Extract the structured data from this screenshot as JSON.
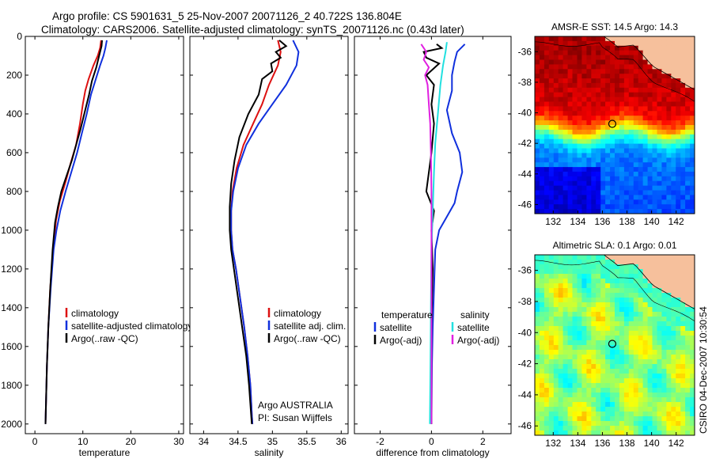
{
  "header": {
    "line1": "Argo profile: CS 5901631_5 25-Nov-2007 20071126_2 40.722S 136.804E",
    "line2": "Climatology: CARS2006. Satellite-adjusted climatology: synTS_20071126.nc (0.43d later)"
  },
  "footer": {
    "credit": "CSIRO 04-Dec-2007 10:30:54"
  },
  "colors": {
    "climatology": "#dd1010",
    "satellite": "#1030dd",
    "argo": "#000000",
    "salinity_satellite": "#22e0e0",
    "salinity_argo": "#e020e0",
    "land": "#f6c09c"
  },
  "chart_data": [
    {
      "id": "temperature",
      "type": "line",
      "xlabel": "temperature",
      "ylabel": "",
      "xlim": [
        -2,
        31
      ],
      "ylim": [
        2050,
        0
      ],
      "xticks": [
        0,
        10,
        20,
        30
      ],
      "yticks": [
        0,
        200,
        400,
        600,
        800,
        1000,
        1200,
        1400,
        1600,
        1800,
        2000
      ],
      "series": [
        {
          "name": "climatology",
          "color": "#dd1010",
          "points": [
            [
              13.8,
              20
            ],
            [
              13.6,
              60
            ],
            [
              13.1,
              100
            ],
            [
              12.2,
              150
            ],
            [
              11.2,
              220
            ],
            [
              10.5,
              280
            ],
            [
              10.0,
              350
            ],
            [
              9.4,
              450
            ],
            [
              8.6,
              560
            ],
            [
              7.5,
              650
            ],
            [
              6.4,
              750
            ],
            [
              5.2,
              850
            ],
            [
              4.4,
              950
            ],
            [
              3.8,
              1100
            ],
            [
              3.2,
              1300
            ],
            [
              2.8,
              1500
            ],
            [
              2.5,
              1700
            ],
            [
              2.3,
              1900
            ],
            [
              2.2,
              2000
            ]
          ]
        },
        {
          "name": "satellite-adjusted climatology",
          "color": "#1030dd",
          "points": [
            [
              15.0,
              20
            ],
            [
              14.7,
              60
            ],
            [
              14.3,
              100
            ],
            [
              13.6,
              150
            ],
            [
              12.7,
              220
            ],
            [
              11.7,
              300
            ],
            [
              10.8,
              400
            ],
            [
              9.8,
              500
            ],
            [
              8.8,
              600
            ],
            [
              7.6,
              700
            ],
            [
              6.4,
              800
            ],
            [
              5.3,
              900
            ],
            [
              4.5,
              1000
            ],
            [
              3.9,
              1100
            ],
            [
              3.3,
              1300
            ],
            [
              2.8,
              1500
            ],
            [
              2.5,
              1700
            ],
            [
              2.3,
              1900
            ],
            [
              2.2,
              2000
            ]
          ]
        },
        {
          "name": "Argo(..raw -QC)",
          "color": "#000000",
          "points": [
            [
              14.0,
              20
            ],
            [
              13.9,
              50
            ],
            [
              13.4,
              100
            ],
            [
              12.8,
              160
            ],
            [
              11.9,
              230
            ],
            [
              11.3,
              300
            ],
            [
              10.3,
              400
            ],
            [
              9.5,
              480
            ],
            [
              8.6,
              560
            ],
            [
              7.7,
              640
            ],
            [
              6.6,
              720
            ],
            [
              5.5,
              800
            ],
            [
              4.8,
              880
            ],
            [
              4.2,
              960
            ],
            [
              3.7,
              1100
            ],
            [
              3.2,
              1300
            ],
            [
              2.8,
              1500
            ],
            [
              2.5,
              1700
            ],
            [
              2.3,
              1900
            ],
            [
              2.2,
              2000
            ]
          ]
        }
      ],
      "legend": {
        "placement": "right",
        "entries": [
          "climatology",
          "satellite-adjusted climatology",
          "Argo(..raw -QC)"
        ]
      }
    },
    {
      "id": "salinity",
      "type": "line",
      "xlabel": "salinity",
      "xlim": [
        33.8,
        36.1
      ],
      "ylim": [
        2050,
        0
      ],
      "xticks": [
        34,
        34.5,
        35,
        35.5,
        36
      ],
      "series": [
        {
          "name": "climatology",
          "color": "#dd1010",
          "points": [
            [
              35.08,
              20
            ],
            [
              35.12,
              80
            ],
            [
              35.08,
              150
            ],
            [
              34.95,
              250
            ],
            [
              34.85,
              350
            ],
            [
              34.72,
              450
            ],
            [
              34.58,
              560
            ],
            [
              34.48,
              680
            ],
            [
              34.42,
              800
            ],
            [
              34.4,
              900
            ],
            [
              34.4,
              1000
            ],
            [
              34.42,
              1100
            ],
            [
              34.47,
              1200
            ],
            [
              34.53,
              1350
            ],
            [
              34.59,
              1500
            ],
            [
              34.64,
              1650
            ],
            [
              34.68,
              1800
            ],
            [
              34.7,
              1950
            ],
            [
              34.71,
              2000
            ]
          ]
        },
        {
          "name": "satellite adj. clim.",
          "color": "#1030dd",
          "points": [
            [
              35.3,
              20
            ],
            [
              35.38,
              80
            ],
            [
              35.35,
              150
            ],
            [
              35.2,
              250
            ],
            [
              35.0,
              350
            ],
            [
              34.8,
              450
            ],
            [
              34.62,
              560
            ],
            [
              34.5,
              680
            ],
            [
              34.43,
              800
            ],
            [
              34.4,
              900
            ],
            [
              34.4,
              1000
            ],
            [
              34.42,
              1100
            ],
            [
              34.47,
              1200
            ],
            [
              34.53,
              1350
            ],
            [
              34.59,
              1500
            ],
            [
              34.64,
              1650
            ],
            [
              34.68,
              1800
            ],
            [
              34.7,
              1950
            ],
            [
              34.71,
              2000
            ]
          ]
        },
        {
          "name": "Argo(..raw -QC)",
          "color": "#000000",
          "points": [
            [
              35.1,
              20
            ],
            [
              35.2,
              50
            ],
            [
              35.05,
              80
            ],
            [
              35.12,
              110
            ],
            [
              34.98,
              140
            ],
            [
              35.0,
              180
            ],
            [
              34.85,
              220
            ],
            [
              34.8,
              300
            ],
            [
              34.65,
              400
            ],
            [
              34.52,
              520
            ],
            [
              34.45,
              640
            ],
            [
              34.4,
              760
            ],
            [
              34.38,
              880
            ],
            [
              34.38,
              1000
            ],
            [
              34.4,
              1100
            ],
            [
              34.44,
              1200
            ],
            [
              34.5,
              1350
            ],
            [
              34.56,
              1500
            ],
            [
              34.62,
              1650
            ],
            [
              34.66,
              1800
            ],
            [
              34.69,
              1950
            ],
            [
              34.7,
              2000
            ]
          ]
        }
      ],
      "legend": {
        "placement": "right",
        "entries": [
          "climatology",
          "satellite adj. clim.",
          "Argo(..raw -QC)"
        ]
      },
      "annotations": [
        "Argo AUSTRALIA",
        "PI: Susan Wijffels"
      ]
    },
    {
      "id": "difference",
      "type": "line",
      "xlabel": "difference from climatology",
      "xlim": [
        -3,
        3.1
      ],
      "ylim": [
        2050,
        0
      ],
      "xticks": [
        -2,
        0,
        2
      ],
      "series": [
        {
          "name": "temperature satellite",
          "color": "#1030dd",
          "points": [
            [
              1.3,
              40
            ],
            [
              1.0,
              80
            ],
            [
              0.9,
              130
            ],
            [
              0.8,
              200
            ],
            [
              0.8,
              280
            ],
            [
              0.6,
              380
            ],
            [
              0.8,
              500
            ],
            [
              1.1,
              600
            ],
            [
              1.2,
              700
            ],
            [
              1.0,
              800
            ],
            [
              0.9,
              860
            ],
            [
              0.6,
              930
            ],
            [
              0.3,
              1000
            ],
            [
              0.15,
              1100
            ],
            [
              0.1,
              1300
            ],
            [
              0.05,
              1500
            ],
            [
              0.02,
              1700
            ],
            [
              0.0,
              2000
            ]
          ]
        },
        {
          "name": "temperature Argo(-adj)",
          "color": "#000000",
          "points": [
            [
              0.2,
              40
            ],
            [
              0.4,
              60
            ],
            [
              -0.3,
              80
            ],
            [
              -0.2,
              110
            ],
            [
              0.3,
              140
            ],
            [
              -0.2,
              200
            ],
            [
              0.1,
              250
            ],
            [
              0.0,
              350
            ],
            [
              0.1,
              450
            ],
            [
              0.0,
              600
            ],
            [
              -0.2,
              800
            ],
            [
              0.1,
              900
            ],
            [
              0.0,
              1000
            ],
            [
              0.05,
              1200
            ],
            [
              0.0,
              1500
            ],
            [
              0.0,
              2000
            ]
          ]
        },
        {
          "name": "salinity satellite",
          "color": "#22e0e0",
          "points": [
            [
              0.6,
              30
            ],
            [
              0.55,
              80
            ],
            [
              0.45,
              150
            ],
            [
              0.35,
              250
            ],
            [
              0.25,
              400
            ],
            [
              0.15,
              550
            ],
            [
              0.1,
              700
            ],
            [
              0.05,
              900
            ],
            [
              0.0,
              1100
            ],
            [
              -0.02,
              1400
            ],
            [
              -0.04,
              1700
            ],
            [
              -0.06,
              2000
            ]
          ]
        },
        {
          "name": "salinity Argo(-adj)",
          "color": "#e020e0",
          "points": [
            [
              -0.4,
              40
            ],
            [
              -0.2,
              80
            ],
            [
              -0.3,
              120
            ],
            [
              -0.1,
              160
            ],
            [
              -0.25,
              200
            ],
            [
              -0.15,
              250
            ],
            [
              -0.1,
              350
            ],
            [
              -0.05,
              450
            ],
            [
              -0.02,
              600
            ],
            [
              0.0,
              800
            ],
            [
              0.0,
              1200
            ],
            [
              0.0,
              2000
            ]
          ]
        }
      ],
      "legend": {
        "placement": "right",
        "group_titles": [
          "temperature",
          "salinity"
        ],
        "entries": [
          "satellite",
          "Argo(-adj)",
          "satellite",
          "Argo(-adj)"
        ]
      }
    },
    {
      "id": "sst_map",
      "type": "heatmap",
      "title": "AMSR-E SST: 14.5 Argo: 14.3",
      "xlim": [
        130.5,
        143.5
      ],
      "ylim": [
        -46.6,
        -35.0
      ],
      "xticks": [
        132,
        134,
        136,
        138,
        140,
        142
      ],
      "yticks": [
        -36,
        -38,
        -40,
        -42,
        -44,
        -46
      ],
      "profile_location": {
        "lon": 136.804,
        "lat": -40.722
      },
      "cmap": "jet"
    },
    {
      "id": "sla_map",
      "type": "heatmap",
      "title": "Altimetric SLA: 0.1 Argo: 0.01",
      "xlim": [
        130.5,
        143.5
      ],
      "ylim": [
        -46.6,
        -35.0
      ],
      "xticks": [
        132,
        134,
        136,
        138,
        140,
        142
      ],
      "yticks": [
        -36,
        -38,
        -40,
        -42,
        -44,
        -46
      ],
      "profile_location": {
        "lon": 136.804,
        "lat": -40.722
      },
      "cmap": "jet"
    }
  ]
}
